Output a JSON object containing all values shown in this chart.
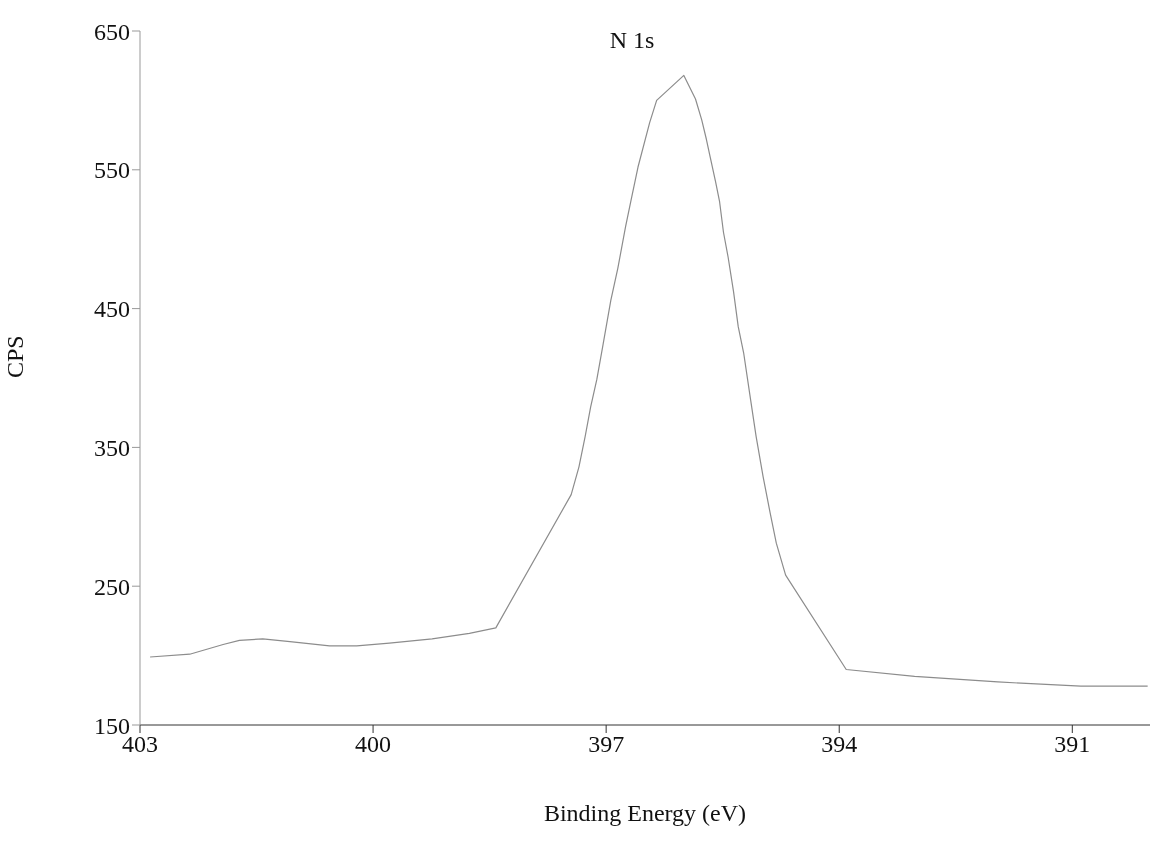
{
  "chart_data": {
    "type": "line",
    "title": "N 1s",
    "xlabel": "Binding Energy (eV)",
    "ylabel": "CPS",
    "x": [
      402.87,
      402.36,
      401.93,
      401.72,
      401.42,
      401.07,
      400.56,
      400.21,
      399.79,
      399.24,
      398.76,
      398.42,
      397.45,
      397.35,
      397.27,
      397.2,
      397.12,
      397.04,
      396.94,
      396.85,
      396.75,
      396.68,
      396.59,
      396.44,
      396.35,
      396.0,
      395.85,
      395.77,
      395.71,
      395.66,
      395.59,
      395.54,
      395.49,
      395.43,
      395.36,
      395.3,
      395.23,
      395.14,
      395.07,
      394.98,
      394.89,
      394.81,
      394.69,
      393.91,
      393.03,
      391.96,
      390.89,
      390.03
    ],
    "series": [
      {
        "color": "#8c8c8c",
        "values": [
          199,
          201,
          208,
          211,
          212,
          210,
          207,
          207,
          209,
          212,
          216,
          220,
          316,
          336,
          358,
          379,
          399,
          424,
          456,
          479,
          509,
          528,
          552,
          584,
          600,
          618,
          601,
          586,
          572,
          559,
          541,
          527,
          505,
          487,
          462,
          437,
          418,
          384,
          358,
          329,
          303,
          281,
          258,
          190,
          185,
          181,
          178,
          178
        ]
      }
    ],
    "xlim": [
      403,
      390
    ],
    "xticks": [
      403,
      400,
      397,
      394,
      391
    ],
    "ylim": [
      150,
      650
    ],
    "yticks": [
      150,
      250,
      350,
      450,
      550,
      650
    ],
    "grid": false,
    "legend": false,
    "marker": "none",
    "line_style": "solid"
  }
}
